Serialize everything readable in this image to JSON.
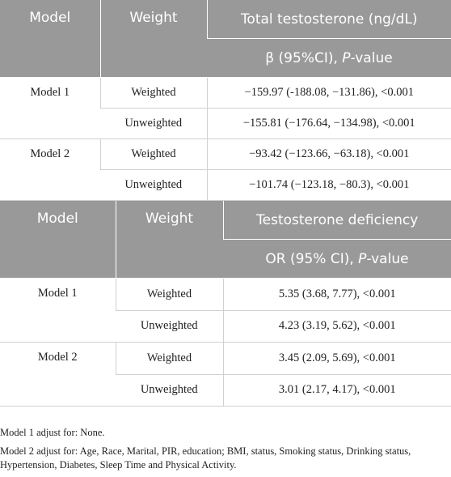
{
  "tables": [
    {
      "header": {
        "model": "Model",
        "weight": "Weight",
        "outcome": "Total testosterone (ng/dL)",
        "stat": {
          "text": "β (95%CI), ",
          "italic": "P",
          "suffix": "-value"
        }
      },
      "groups": [
        {
          "model": "Model 1",
          "rows": [
            {
              "weight": "Weighted",
              "result": "−159.97 (-188.08, −131.86), <0.001"
            },
            {
              "weight": "Unweighted",
              "result": "−155.81 (−176.64, −134.98), <0.001"
            }
          ]
        },
        {
          "model": "Model 2",
          "rows": [
            {
              "weight": "Weighted",
              "result": "−93.42 (−123.66, −63.18), <0.001"
            },
            {
              "weight": "Unweighted",
              "result": "−101.74 (−123.18, −80.3), <0.001"
            }
          ]
        }
      ]
    },
    {
      "header": {
        "model": "Model",
        "weight": "Weight",
        "outcome": "Testosterone deficiency",
        "stat": {
          "text": "OR (95% CI), ",
          "italic": "P",
          "suffix": "-value"
        }
      },
      "groups": [
        {
          "model": "Model 1",
          "rows": [
            {
              "weight": "Weighted",
              "result": "5.35 (3.68, 7.77), <0.001"
            },
            {
              "weight": "Unweighted",
              "result": "4.23 (3.19, 5.62), <0.001"
            }
          ]
        },
        {
          "model": "Model 2",
          "rows": [
            {
              "weight": "Weighted",
              "result": "3.45 (2.09, 5.69), <0.001"
            },
            {
              "weight": "Unweighted",
              "result": "3.01 (2.17, 4.17), <0.001"
            }
          ]
        }
      ]
    }
  ],
  "footnotes": [
    "Model 1 adjust for: None.",
    "Model 2 adjust for: Age, Race, Marital, PIR, education; BMI, status, Smoking status, Drinking status, Hypertension, Diabetes, Sleep Time and Physical Activity."
  ]
}
